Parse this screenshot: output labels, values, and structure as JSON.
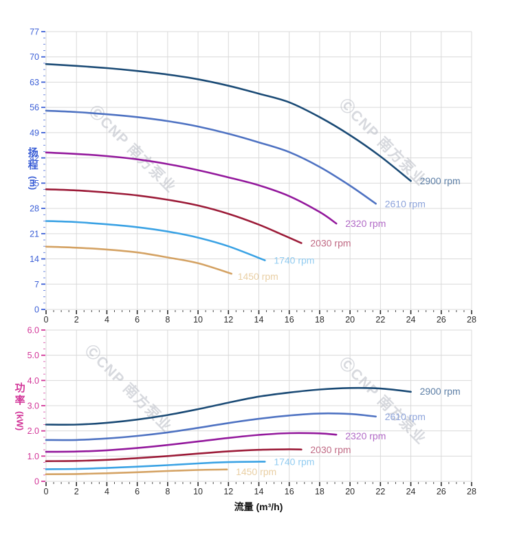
{
  "watermark": {
    "text": "ⒸCNP 南方泵业",
    "color": "#b6bac3"
  },
  "x_axis": {
    "title": "流量 (m³/h)",
    "min": 0,
    "max": 28,
    "major_step": 2,
    "minor_step": 0.5,
    "tick_labels": [
      "0",
      "2",
      "4",
      "6",
      "8",
      "10",
      "12",
      "14",
      "16",
      "18",
      "20",
      "22",
      "24",
      "26",
      "28"
    ],
    "tick_color": "#2b2b2b"
  },
  "chart_data": [
    {
      "type": "line",
      "id": "head",
      "xlabel": "流量 (m³/h)",
      "ylabel": "扬程 (m)",
      "legend_position": "end-of-line",
      "grid": true,
      "y_axis": {
        "title": "扬程",
        "unit": "(m)",
        "min": 0,
        "max": 77,
        "major_step": 7,
        "minor_step": 1.75,
        "tick_labels": [
          "0",
          "7",
          "14",
          "21",
          "28",
          "35",
          "42",
          "49",
          "56",
          "63",
          "70",
          "77"
        ],
        "color": "#3a5ed6"
      },
      "series": [
        {
          "name": "2900 rpm",
          "color": "#1a4a75",
          "label_color": "#5d7fa6",
          "points": [
            [
              0,
              68
            ],
            [
              2,
              67.5
            ],
            [
              4,
              66.9
            ],
            [
              6,
              66.1
            ],
            [
              8,
              65.1
            ],
            [
              10,
              63.8
            ],
            [
              12,
              62.0
            ],
            [
              14,
              59.8
            ],
            [
              16,
              57.4
            ],
            [
              18,
              53.3
            ],
            [
              20,
              48.3
            ],
            [
              22,
              42.4
            ],
            [
              24,
              35.6
            ]
          ]
        },
        {
          "name": "2610 rpm",
          "color": "#4e72c2",
          "label_color": "#8ea4db",
          "points": [
            [
              0,
              55.1
            ],
            [
              2,
              54.7
            ],
            [
              4,
              54.1
            ],
            [
              6,
              53.3
            ],
            [
              8,
              52.2
            ],
            [
              10,
              50.7
            ],
            [
              12,
              48.7
            ],
            [
              14,
              46.3
            ],
            [
              16,
              43.6
            ],
            [
              18,
              39.5
            ],
            [
              20,
              34.3
            ],
            [
              21.7,
              29.3
            ]
          ]
        },
        {
          "name": "2320 rpm",
          "color": "#93189c",
          "label_color": "#b169c6",
          "points": [
            [
              0,
              43.5
            ],
            [
              2,
              43.1
            ],
            [
              4,
              42.5
            ],
            [
              6,
              41.6
            ],
            [
              8,
              40.3
            ],
            [
              10,
              38.6
            ],
            [
              12,
              36.6
            ],
            [
              14,
              34.4
            ],
            [
              16,
              31.4
            ],
            [
              18,
              27.0
            ],
            [
              19.1,
              23.8
            ]
          ]
        },
        {
          "name": "2030 rpm",
          "color": "#9c1b38",
          "label_color": "#c06a84",
          "points": [
            [
              0,
              33.3
            ],
            [
              2,
              33.0
            ],
            [
              4,
              32.4
            ],
            [
              6,
              31.6
            ],
            [
              8,
              30.4
            ],
            [
              10,
              28.8
            ],
            [
              12,
              26.5
            ],
            [
              14,
              23.5
            ],
            [
              15.5,
              20.8
            ],
            [
              16.8,
              18.4
            ]
          ]
        },
        {
          "name": "1740 rpm",
          "color": "#3aa2e4",
          "label_color": "#92ccf1",
          "points": [
            [
              0,
              24.5
            ],
            [
              2,
              24.2
            ],
            [
              4,
              23.6
            ],
            [
              6,
              22.8
            ],
            [
              8,
              21.6
            ],
            [
              10,
              19.9
            ],
            [
              12,
              17.5
            ],
            [
              14.4,
              13.6
            ]
          ]
        },
        {
          "name": "1450 rpm",
          "color": "#d4a263",
          "label_color": "#e9cfa4",
          "label_dx": 9,
          "label_dy": 9,
          "points": [
            [
              0,
              17.4
            ],
            [
              2,
              17.1
            ],
            [
              4,
              16.6
            ],
            [
              6,
              15.8
            ],
            [
              8,
              14.4
            ],
            [
              10,
              12.8
            ],
            [
              12.2,
              9.9
            ]
          ]
        }
      ]
    },
    {
      "type": "line",
      "id": "power",
      "xlabel": "流量 (m³/h)",
      "ylabel": "功率 (kW)",
      "legend_position": "end-of-line",
      "grid": true,
      "y_axis": {
        "title": "功率",
        "unit": "(kW)",
        "min": 0,
        "max": 6,
        "major_step": 1,
        "minor_step": 0.25,
        "tick_labels": [
          "0",
          "1.0",
          "2.0",
          "3.0",
          "4.0",
          "5.0",
          "6.0"
        ],
        "color": "#d23598"
      },
      "series": [
        {
          "name": "2900 rpm",
          "color": "#1a4a75",
          "label_color": "#5d7fa6",
          "label_dy": 4,
          "points": [
            [
              0,
              2.25
            ],
            [
              2,
              2.25
            ],
            [
              4,
              2.32
            ],
            [
              6,
              2.45
            ],
            [
              8,
              2.63
            ],
            [
              10,
              2.86
            ],
            [
              12,
              3.12
            ],
            [
              14,
              3.36
            ],
            [
              16,
              3.52
            ],
            [
              18,
              3.64
            ],
            [
              20,
              3.7
            ],
            [
              22,
              3.68
            ],
            [
              24,
              3.55
            ]
          ]
        },
        {
          "name": "2610 rpm",
          "color": "#4e72c2",
          "label_color": "#8ea4db",
          "points": [
            [
              0,
              1.64
            ],
            [
              2,
              1.64
            ],
            [
              4,
              1.7
            ],
            [
              6,
              1.8
            ],
            [
              8,
              1.94
            ],
            [
              10,
              2.12
            ],
            [
              12,
              2.31
            ],
            [
              14,
              2.48
            ],
            [
              16,
              2.61
            ],
            [
              18,
              2.69
            ],
            [
              20,
              2.67
            ],
            [
              21.7,
              2.57
            ]
          ]
        },
        {
          "name": "2320 rpm",
          "color": "#93189c",
          "label_color": "#b169c6",
          "label_dy": 7,
          "points": [
            [
              0,
              1.17
            ],
            [
              2,
              1.18
            ],
            [
              4,
              1.23
            ],
            [
              6,
              1.32
            ],
            [
              8,
              1.44
            ],
            [
              10,
              1.58
            ],
            [
              12,
              1.72
            ],
            [
              14,
              1.84
            ],
            [
              16,
              1.91
            ],
            [
              18,
              1.9
            ],
            [
              19.1,
              1.85
            ]
          ]
        },
        {
          "name": "2030 rpm",
          "color": "#9c1b38",
          "label_color": "#c06a84",
          "points": [
            [
              0,
              0.8
            ],
            [
              2,
              0.81
            ],
            [
              4,
              0.85
            ],
            [
              6,
              0.92
            ],
            [
              8,
              1.0
            ],
            [
              10,
              1.1
            ],
            [
              12,
              1.19
            ],
            [
              14,
              1.25
            ],
            [
              16,
              1.27
            ],
            [
              16.8,
              1.26
            ]
          ]
        },
        {
          "name": "1740 rpm",
          "color": "#3aa2e4",
          "label_color": "#92ccf1",
          "points": [
            [
              0,
              0.48
            ],
            [
              2,
              0.49
            ],
            [
              4,
              0.53
            ],
            [
              6,
              0.58
            ],
            [
              8,
              0.64
            ],
            [
              10,
              0.71
            ],
            [
              12,
              0.76
            ],
            [
              14.4,
              0.78
            ]
          ]
        },
        {
          "name": "1450 rpm",
          "color": "#d4a263",
          "label_color": "#e9cfa4",
          "label_dx": 13,
          "label_dy": 8,
          "points": [
            [
              0,
              0.28
            ],
            [
              2,
              0.29
            ],
            [
              4,
              0.32
            ],
            [
              6,
              0.36
            ],
            [
              8,
              0.41
            ],
            [
              10,
              0.45
            ],
            [
              11.9,
              0.47
            ]
          ]
        }
      ]
    }
  ]
}
